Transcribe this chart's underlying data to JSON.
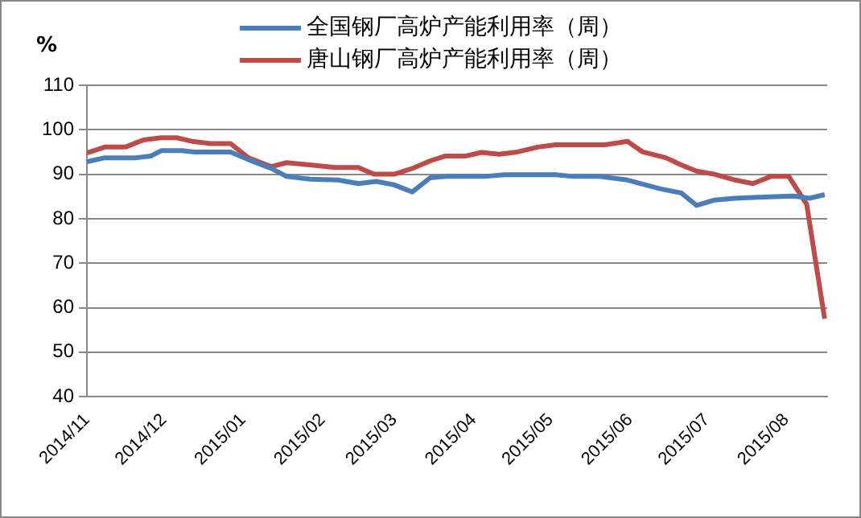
{
  "chart_data": {
    "type": "line",
    "ylabel": "%",
    "legend": "top",
    "grid": "y",
    "marker": "none",
    "line_style": "solid",
    "xlim": [
      "2014-11-01",
      "2015-08-17"
    ],
    "xticks": [
      {
        "value": "2014-11-01",
        "label": "2014/11"
      },
      {
        "value": "2014-12-01",
        "label": "2014/12"
      },
      {
        "value": "2015-01-01",
        "label": "2015/01"
      },
      {
        "value": "2015-02-01",
        "label": "2015/02"
      },
      {
        "value": "2015-03-01",
        "label": "2015/03"
      },
      {
        "value": "2015-04-01",
        "label": "2015/04"
      },
      {
        "value": "2015-05-01",
        "label": "2015/05"
      },
      {
        "value": "2015-06-01",
        "label": "2015/06"
      },
      {
        "value": "2015-07-01",
        "label": "2015/07"
      },
      {
        "value": "2015-08-01",
        "label": "2015/08"
      }
    ],
    "ylim": [
      40,
      110
    ],
    "yticks": [
      40,
      50,
      60,
      70,
      80,
      90,
      100,
      110
    ],
    "series": [
      {
        "name": "全国钢厂高炉产能利用率（周）",
        "color": "#4a7ebb",
        "x": [
          "2014-11-01",
          "2014-11-08",
          "2014-11-20",
          "2014-11-26",
          "2014-11-30",
          "2014-12-08",
          "2014-12-13",
          "2014-12-27",
          "2015-01-03",
          "2015-01-12",
          "2015-01-18",
          "2015-01-27",
          "2015-02-07",
          "2015-02-15",
          "2015-02-22",
          "2015-03-01",
          "2015-03-08",
          "2015-03-15",
          "2015-03-21",
          "2015-04-05",
          "2015-04-13",
          "2015-05-03",
          "2015-05-10",
          "2015-05-20",
          "2015-05-31",
          "2015-06-13",
          "2015-06-21",
          "2015-06-27",
          "2015-07-04",
          "2015-07-12",
          "2015-07-21",
          "2015-07-30",
          "2015-08-04",
          "2015-08-10",
          "2015-08-16"
        ],
        "values": [
          92.8,
          93.7,
          93.7,
          94.1,
          95.3,
          95.3,
          95,
          95,
          93.3,
          91.3,
          89.5,
          88.9,
          88.7,
          87.9,
          88.4,
          87.6,
          86,
          89.2,
          89.5,
          89.5,
          89.9,
          89.9,
          89.5,
          89.5,
          88.7,
          86.7,
          85.8,
          83,
          84.2,
          84.6,
          84.8,
          85,
          85.1,
          84.6,
          85.4
        ]
      },
      {
        "name": "唐山钢厂高炉产能利用率（周）",
        "color": "#be4b48",
        "x": [
          "2014-11-01",
          "2014-11-08",
          "2014-11-16",
          "2014-11-23",
          "2014-11-30",
          "2014-12-06",
          "2014-12-12",
          "2014-12-19",
          "2014-12-27",
          "2015-01-03",
          "2015-01-12",
          "2015-01-18",
          "2015-01-27",
          "2015-02-06",
          "2015-02-15",
          "2015-02-21",
          "2015-03-01",
          "2015-03-08",
          "2015-03-15",
          "2015-03-21",
          "2015-03-29",
          "2015-04-04",
          "2015-04-11",
          "2015-04-18",
          "2015-04-26",
          "2015-05-03",
          "2015-05-22",
          "2015-05-31",
          "2015-06-06",
          "2015-06-15",
          "2015-06-21",
          "2015-06-27",
          "2015-07-04",
          "2015-07-12",
          "2015-07-19",
          "2015-07-26",
          "2015-08-02",
          "2015-08-09",
          "2015-08-16"
        ],
        "values": [
          94.8,
          96.1,
          96.1,
          97.7,
          98.2,
          98.2,
          97.4,
          96.9,
          96.9,
          93.7,
          91.7,
          92.6,
          92.1,
          91.5,
          91.5,
          90,
          90,
          91.3,
          93,
          94.1,
          94.1,
          94.9,
          94.5,
          95,
          96.1,
          96.6,
          96.6,
          97.4,
          95,
          93.7,
          92.1,
          90.7,
          90,
          88.7,
          87.9,
          89.5,
          89.5,
          83.2,
          57.5
        ]
      }
    ]
  }
}
